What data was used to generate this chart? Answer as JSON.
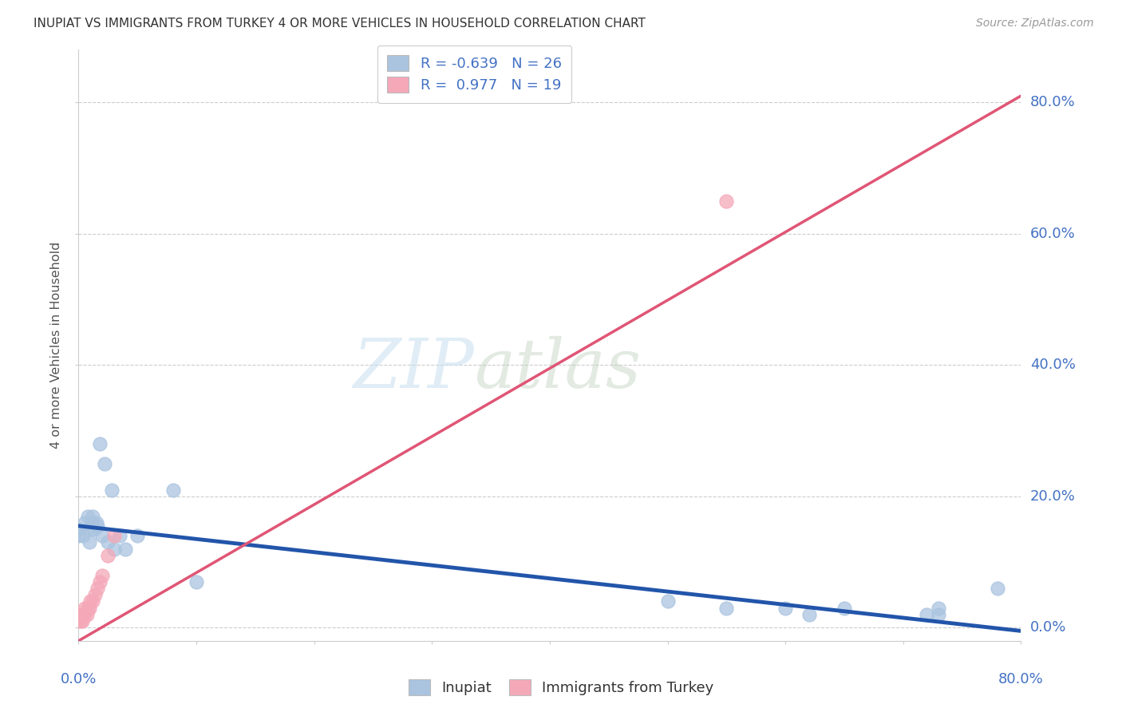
{
  "title": "INUPIAT VS IMMIGRANTS FROM TURKEY 4 OR MORE VEHICLES IN HOUSEHOLD CORRELATION CHART",
  "source": "Source: ZipAtlas.com",
  "ylabel": "4 or more Vehicles in Household",
  "ytick_labels": [
    "0.0%",
    "20.0%",
    "40.0%",
    "60.0%",
    "80.0%"
  ],
  "ytick_values": [
    0.0,
    0.2,
    0.4,
    0.6,
    0.8
  ],
  "xlim": [
    0.0,
    0.8
  ],
  "ylim": [
    -0.02,
    0.88
  ],
  "inupiat_color": "#aac4e0",
  "turkey_color": "#f4a8b8",
  "inupiat_line_color": "#2255aa",
  "turkey_line_color": "#e05575",
  "background_color": "#ffffff",
  "blue_color": "#4472c4",
  "inupiat_x": [
    0.0,
    0.0,
    0.004,
    0.005,
    0.008,
    0.009,
    0.01,
    0.011,
    0.012,
    0.013,
    0.015,
    0.016,
    0.018,
    0.02,
    0.022,
    0.025,
    0.028,
    0.03,
    0.035,
    0.04,
    0.05,
    0.08,
    0.1,
    0.5,
    0.55,
    0.6,
    0.62,
    0.65,
    0.72,
    0.73,
    0.73,
    0.78
  ],
  "inupiat_y": [
    0.14,
    0.15,
    0.14,
    0.16,
    0.17,
    0.13,
    0.15,
    0.16,
    0.17,
    0.15,
    0.16,
    0.155,
    0.28,
    0.14,
    0.25,
    0.13,
    0.21,
    0.12,
    0.14,
    0.12,
    0.14,
    0.21,
    0.07,
    0.04,
    0.03,
    0.03,
    0.02,
    0.03,
    0.02,
    0.02,
    0.03,
    0.06
  ],
  "turkey_x": [
    0.0,
    0.0,
    0.0,
    0.002,
    0.003,
    0.003,
    0.005,
    0.005,
    0.007,
    0.008,
    0.009,
    0.01,
    0.012,
    0.014,
    0.016,
    0.018,
    0.02,
    0.025,
    0.03,
    0.55
  ],
  "turkey_y": [
    0.01,
    0.02,
    0.02,
    0.01,
    0.01,
    0.02,
    0.02,
    0.03,
    0.02,
    0.03,
    0.03,
    0.04,
    0.04,
    0.05,
    0.06,
    0.07,
    0.08,
    0.11,
    0.14,
    0.65
  ],
  "inupiat_line_x0": 0.0,
  "inupiat_line_y0": 0.155,
  "inupiat_line_x1": 0.8,
  "inupiat_line_y1": -0.005,
  "turkey_line_x0": 0.0,
  "turkey_line_y0": -0.02,
  "turkey_line_x1": 0.8,
  "turkey_line_y1": 0.81
}
